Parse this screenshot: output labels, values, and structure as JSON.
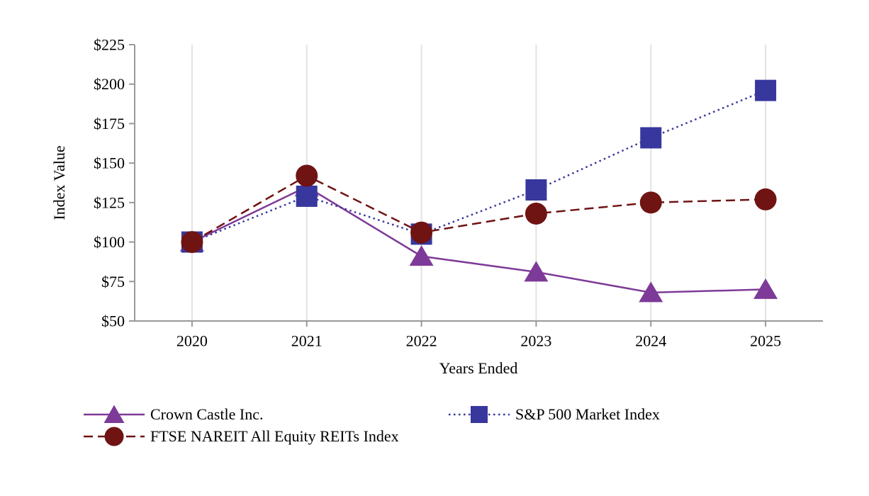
{
  "chart_data": {
    "type": "line",
    "title": "",
    "xlabel": "Years Ended",
    "ylabel": "Index Value",
    "categories": [
      "2020",
      "2021",
      "2022",
      "2023",
      "2024",
      "2025"
    ],
    "series": [
      {
        "name": "Crown Castle Inc.",
        "values": [
          100,
          135,
          91,
          81,
          68,
          70
        ],
        "color": "#7E3A98",
        "marker": "triangle",
        "line_style": "solid"
      },
      {
        "name": "S&P 500 Market Index",
        "values": [
          100,
          129,
          105,
          133,
          166,
          196
        ],
        "color": "#37379E",
        "marker": "square",
        "line_style": "dotted"
      },
      {
        "name": "FTSE NAREIT All Equity REITs Index",
        "values": [
          100,
          142,
          106,
          118,
          125,
          127
        ],
        "color": "#6F1313",
        "marker": "circle",
        "line_style": "dashed"
      }
    ],
    "ylim": [
      50,
      225
    ],
    "y_ticks": [
      225,
      200,
      175,
      150,
      125,
      100,
      75,
      50
    ],
    "y_tick_prefix": "$",
    "grid": "vertical-only",
    "legend_position": "bottom",
    "colors": {
      "gridline": "#E2E2E2",
      "axis": "#999999",
      "background": "#FFFFFF"
    }
  },
  "legend": {
    "items": [
      {
        "label": "Crown Castle Inc."
      },
      {
        "label": "S&P 500 Market Index"
      },
      {
        "label": "FTSE NAREIT All Equity REITs Index"
      }
    ]
  },
  "axes": {
    "x_title": "Years Ended",
    "y_title": "Index Value"
  }
}
